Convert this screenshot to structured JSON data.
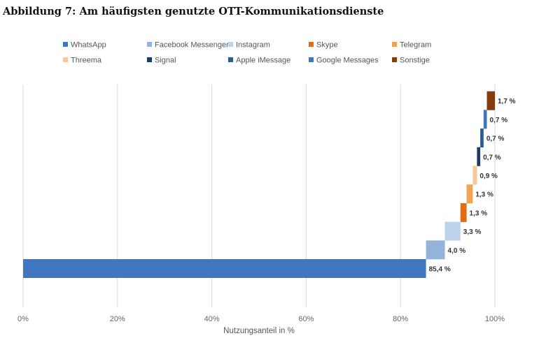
{
  "chart_data": {
    "type": "bar",
    "subtype": "waterfall-horizontal",
    "title": "Abbildung 7: Am häufigsten genutzte OTT-Kommunikationsdienste",
    "xlabel": "Nutzungsanteil in %",
    "xlim": [
      0,
      100
    ],
    "x_ticks": [
      "0%",
      "20%",
      "40%",
      "60%",
      "80%",
      "100%"
    ],
    "grid": true,
    "legend_position": "top",
    "series": [
      {
        "name": "WhatsApp",
        "value": 85.4,
        "label": "85,4 %",
        "color": "#4177c0"
      },
      {
        "name": "Facebook Messenger",
        "value": 4.0,
        "label": "4,0 %",
        "color": "#93b3db"
      },
      {
        "name": "Instagram",
        "value": 3.3,
        "label": "3,3 %",
        "color": "#bcd1ea"
      },
      {
        "name": "Skype",
        "value": 1.3,
        "label": "1,3 %",
        "color": "#e06b15"
      },
      {
        "name": "Telegram",
        "value": 1.3,
        "label": "1,3 %",
        "color": "#f2a256"
      },
      {
        "name": "Threema",
        "value": 0.9,
        "label": "0,9 %",
        "color": "#f8c79c"
      },
      {
        "name": "Signal",
        "value": 0.7,
        "label": "0,7 %",
        "color": "#1f3864"
      },
      {
        "name": "Apple iMessage",
        "value": 0.7,
        "label": "0,7 %",
        "color": "#2e5a8e"
      },
      {
        "name": "Google Messages",
        "value": 0.7,
        "label": "0,7 %",
        "color": "#3d78b8"
      },
      {
        "name": "Sonstige",
        "value": 1.7,
        "label": "1,7 %",
        "color": "#843c0c"
      }
    ]
  }
}
